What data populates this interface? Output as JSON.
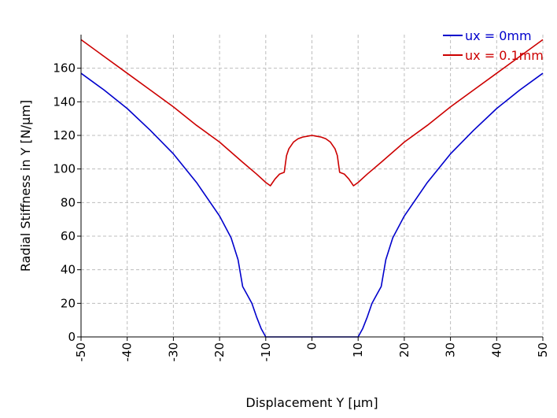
{
  "chart_data": {
    "type": "line",
    "title": "",
    "xlabel": "Displacement Y [µm]",
    "ylabel": "Radial Stiffness in Y [N/µm]",
    "xlim": [
      -50,
      50
    ],
    "ylim": [
      0,
      180
    ],
    "xticks": [
      -50,
      -40,
      -30,
      -20,
      -10,
      0,
      10,
      20,
      30,
      40,
      50
    ],
    "yticks": [
      0,
      20,
      40,
      60,
      80,
      100,
      120,
      140,
      160
    ],
    "grid": true,
    "legend_position": "top-right",
    "series": [
      {
        "name": "ux = 0mm",
        "color": "#0000cc",
        "x": [
          -50,
          -45,
          -40,
          -35,
          -30,
          -25,
          -20,
          -17.5,
          -16,
          -15,
          -14,
          -13,
          -12,
          -11,
          -10,
          0,
          10,
          11,
          12,
          13,
          14,
          15,
          16,
          17.5,
          20,
          25,
          30,
          35,
          40,
          45,
          50
        ],
        "y": [
          157,
          147,
          136,
          123,
          109,
          92,
          72,
          59,
          46,
          30,
          25,
          20,
          12,
          5,
          0,
          0,
          0,
          5,
          12,
          20,
          25,
          30,
          46,
          59,
          72,
          92,
          109,
          123,
          136,
          147,
          157
        ]
      },
      {
        "name": "ux = 0.1mm",
        "color": "#cc0000",
        "x": [
          -50,
          -45,
          -40,
          -35,
          -30,
          -25,
          -20,
          -15,
          -12,
          -10,
          -9,
          -8,
          -7,
          -6,
          -5.5,
          -5,
          -4,
          -3,
          -2,
          -1,
          0,
          1,
          2,
          3,
          4,
          5,
          5.5,
          6,
          7,
          8,
          9,
          10,
          12,
          15,
          20,
          25,
          30,
          35,
          40,
          45,
          50
        ],
        "y": [
          177,
          167,
          157,
          147,
          137,
          126,
          116,
          104,
          97,
          92,
          90,
          94,
          97,
          98,
          108,
          112,
          116,
          118,
          119,
          119.5,
          120,
          119.5,
          119,
          118,
          116,
          112,
          108,
          98,
          97,
          94,
          90,
          92,
          97,
          104,
          116,
          126,
          137,
          147,
          157,
          167,
          177
        ]
      }
    ]
  }
}
